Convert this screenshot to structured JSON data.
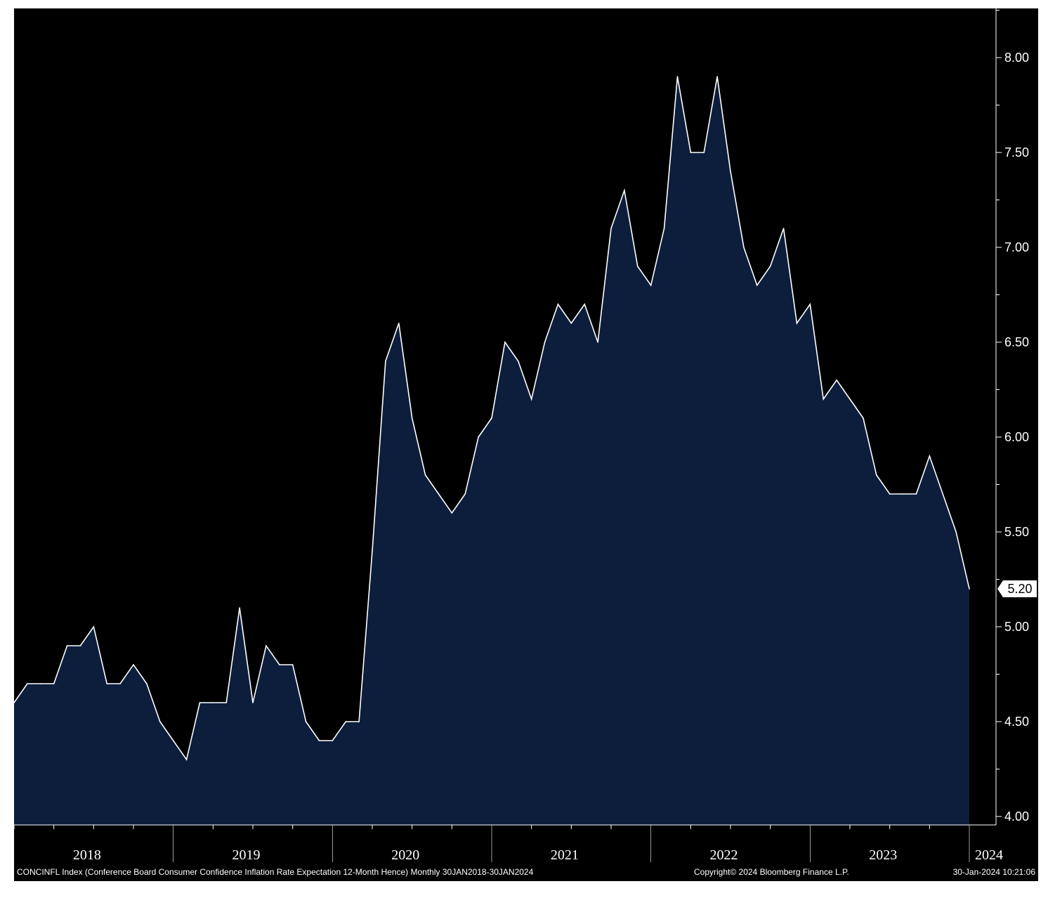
{
  "chart_data": {
    "type": "area",
    "ylim": [
      4.0,
      8.25
    ],
    "y_ticks": [
      "4.00",
      "4.50",
      "5.00",
      "5.50",
      "6.00",
      "6.50",
      "7.00",
      "7.50",
      "8.00"
    ],
    "year_labels": [
      "2018",
      "2019",
      "2020",
      "2021",
      "2022",
      "2023",
      "2024"
    ],
    "last_value_label": "5.20",
    "x_start": "2018-01",
    "x_end": "2024-01",
    "series": [
      {
        "values": [
          4.6,
          4.7,
          4.7,
          4.7,
          4.9,
          4.9,
          5.0,
          4.7,
          4.7,
          4.8,
          4.7,
          4.5,
          4.4,
          4.3,
          4.6,
          4.6,
          4.6,
          5.1,
          4.6,
          4.9,
          4.8,
          4.8,
          4.5,
          4.4,
          4.4,
          4.5,
          4.5,
          5.4,
          6.4,
          6.6,
          6.1,
          5.8,
          5.7,
          5.6,
          5.7,
          6.0,
          6.1,
          6.5,
          6.4,
          6.2,
          6.5,
          6.7,
          6.6,
          6.7,
          6.5,
          7.1,
          7.3,
          6.9,
          6.8,
          7.1,
          7.9,
          7.5,
          7.5,
          7.9,
          7.4,
          7.0,
          6.8,
          6.9,
          7.1,
          6.6,
          6.7,
          6.2,
          6.3,
          6.2,
          6.1,
          5.8,
          5.7,
          5.7,
          5.7,
          5.9,
          5.7,
          5.5,
          5.2
        ]
      }
    ],
    "colors": {
      "background": "#000000",
      "fill": "#0c1e3c",
      "line": "#ffffff"
    }
  },
  "footer": {
    "index_description": "CONCINFL Index (Conference Board Consumer Confidence Inflation Rate Expectation 12-Month Hence)  Monthly 30JAN2018-30JAN2024",
    "copyright": "Copyright© 2024 Bloomberg Finance L.P.",
    "timestamp": "30-Jan-2024 10:21:06"
  }
}
